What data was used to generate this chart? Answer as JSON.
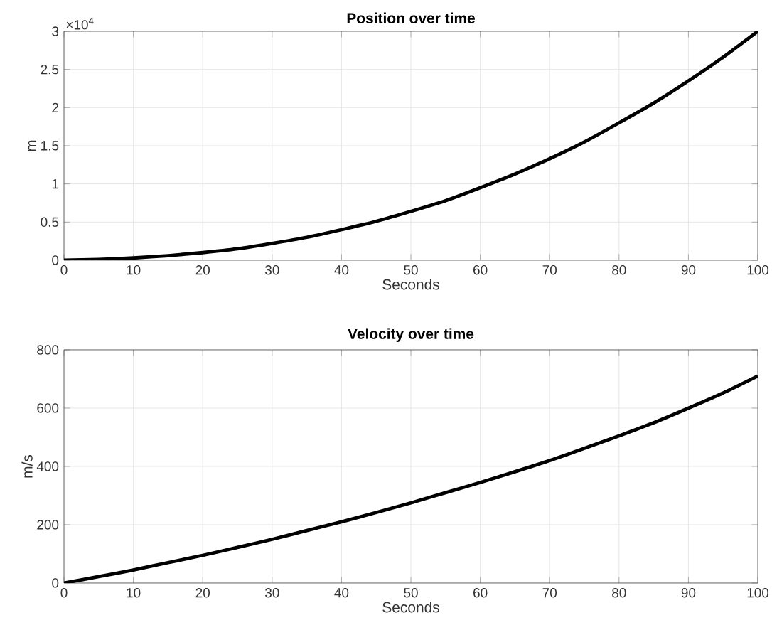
{
  "chart_data": [
    {
      "type": "line",
      "title": "Position over time",
      "xlabel": "Seconds",
      "ylabel": "m",
      "annotations": [
        "×10$^{4}$"
      ],
      "x": [
        0,
        5,
        10,
        15,
        20,
        25,
        30,
        35,
        40,
        45,
        50,
        55,
        60,
        65,
        70,
        75,
        80,
        85,
        90,
        95,
        100
      ],
      "series": [
        {
          "color": "#000000",
          "values": [
            0,
            0.01,
            0.03,
            0.06,
            0.1,
            0.15,
            0.22,
            0.3,
            0.4,
            0.51,
            0.64,
            0.78,
            0.95,
            1.13,
            1.33,
            1.55,
            1.8,
            2.06,
            2.35,
            2.66,
            3
          ]
        }
      ],
      "xlim": [
        0,
        100
      ],
      "ylim": [
        0,
        3
      ],
      "xticks": [
        0,
        10,
        20,
        30,
        40,
        50,
        60,
        70,
        80,
        90,
        100
      ],
      "yticks": [
        0,
        0.5,
        1,
        1.5,
        2,
        2.5,
        3
      ],
      "grid": true
    },
    {
      "type": "line",
      "title": "Velocity over time",
      "xlabel": "Seconds",
      "ylabel": "m/s",
      "x": [
        0,
        5,
        10,
        15,
        20,
        25,
        30,
        35,
        40,
        45,
        50,
        55,
        60,
        65,
        70,
        75,
        80,
        85,
        90,
        95,
        100
      ],
      "series": [
        {
          "color": "#000000",
          "values": [
            0,
            22,
            45,
            70,
            95,
            122,
            150,
            180,
            210,
            242,
            275,
            310,
            345,
            382,
            420,
            462,
            505,
            550,
            600,
            652,
            710
          ]
        }
      ],
      "xlim": [
        0,
        100
      ],
      "ylim": [
        0,
        800
      ],
      "xticks": [
        0,
        10,
        20,
        30,
        40,
        50,
        60,
        70,
        80,
        90,
        100
      ],
      "yticks": [
        0,
        200,
        400,
        600,
        800
      ],
      "grid": true
    }
  ]
}
